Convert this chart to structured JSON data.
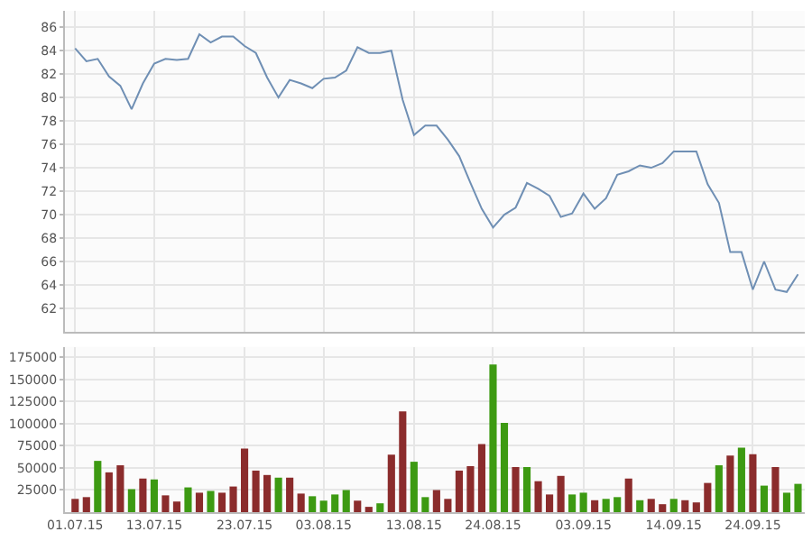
{
  "chart_data": [
    {
      "type": "line",
      "categories": [
        "01.07.15",
        null,
        null,
        null,
        null,
        null,
        null,
        "13.07.15",
        null,
        null,
        null,
        null,
        null,
        null,
        null,
        "23.07.15",
        null,
        null,
        null,
        null,
        null,
        null,
        "03.08.15",
        null,
        null,
        null,
        null,
        null,
        null,
        null,
        "13.08.15",
        null,
        null,
        null,
        null,
        null,
        null,
        "24.08.15",
        null,
        null,
        null,
        null,
        null,
        null,
        null,
        "03.09.15",
        null,
        null,
        null,
        null,
        null,
        null,
        null,
        "14.09.15",
        null,
        null,
        null,
        null,
        null,
        null,
        "24.09.15",
        null,
        null,
        null,
        null
      ],
      "series": [
        {
          "color": "#6f8fb4",
          "values": [
            84.2,
            83.1,
            83.3,
            81.8,
            81.0,
            79.0,
            81.2,
            82.9,
            83.3,
            83.2,
            83.3,
            85.4,
            84.7,
            85.2,
            85.2,
            84.4,
            83.8,
            81.7,
            80.0,
            81.5,
            81.2,
            80.8,
            81.6,
            81.7,
            82.3,
            84.3,
            83.8,
            83.8,
            84.0,
            79.8,
            76.8,
            77.6,
            77.6,
            76.4,
            75.0,
            72.7,
            70.5,
            68.9,
            70.0,
            70.6,
            72.7,
            72.2,
            71.6,
            69.8,
            70.1,
            71.8,
            70.5,
            71.4,
            73.4,
            73.7,
            74.2,
            74.0,
            74.4,
            75.4,
            75.4,
            75.4,
            72.6,
            71.0,
            66.8,
            66.8,
            63.6,
            66.0,
            63.6,
            63.4,
            64.9
          ]
        }
      ],
      "ylim": [
        60,
        87.4
      ],
      "yticks": [
        62,
        64,
        66,
        68,
        70,
        72,
        74,
        76,
        78,
        80,
        82,
        84,
        86
      ],
      "grid": true,
      "tick_labels": "y",
      "marker": "none",
      "line_style": "solid"
    },
    {
      "type": "bar",
      "categories": [
        "01.07.15",
        null,
        null,
        null,
        null,
        null,
        null,
        "13.07.15",
        null,
        null,
        null,
        null,
        null,
        null,
        null,
        "23.07.15",
        null,
        null,
        null,
        null,
        null,
        null,
        "03.08.15",
        null,
        null,
        null,
        null,
        null,
        null,
        null,
        "13.08.15",
        null,
        null,
        null,
        null,
        null,
        null,
        "24.08.15",
        null,
        null,
        null,
        null,
        null,
        null,
        null,
        "03.09.15",
        null,
        null,
        null,
        null,
        null,
        null,
        null,
        "14.09.15",
        null,
        null,
        null,
        null,
        null,
        null,
        "24.09.15",
        null,
        null,
        null,
        null
      ],
      "values": [
        15000,
        17000,
        58000,
        45000,
        53000,
        26000,
        38000,
        37000,
        19000,
        12000,
        28000,
        22000,
        24000,
        22000,
        29000,
        72000,
        47000,
        42000,
        39000,
        39000,
        21000,
        18000,
        13000,
        20000,
        25000,
        13000,
        6000,
        10000,
        65000,
        114000,
        57000,
        17000,
        25000,
        15000,
        47000,
        52000,
        77000,
        167000,
        101000,
        51000,
        51000,
        35000,
        20000,
        41000,
        20000,
        22000,
        13500,
        15000,
        17000,
        38000,
        13500,
        15000,
        9000,
        15000,
        13500,
        11000,
        33000,
        53000,
        64000,
        73000,
        65500,
        30000,
        51000,
        22000,
        32000
      ],
      "colors": [
        "#8b2c2c",
        "#8b2c2c",
        "#3d9a12",
        "#8b2c2c",
        "#8b2c2c",
        "#3d9a12",
        "#8b2c2c",
        "#3d9a12",
        "#8b2c2c",
        "#8b2c2c",
        "#3d9a12",
        "#8b2c2c",
        "#3d9a12",
        "#8b2c2c",
        "#8b2c2c",
        "#8b2c2c",
        "#8b2c2c",
        "#8b2c2c",
        "#3d9a12",
        "#8b2c2c",
        "#8b2c2c",
        "#3d9a12",
        "#3d9a12",
        "#3d9a12",
        "#3d9a12",
        "#8b2c2c",
        "#8b2c2c",
        "#3d9a12",
        "#8b2c2c",
        "#8b2c2c",
        "#3d9a12",
        "#3d9a12",
        "#8b2c2c",
        "#8b2c2c",
        "#8b2c2c",
        "#8b2c2c",
        "#8b2c2c",
        "#3d9a12",
        "#3d9a12",
        "#8b2c2c",
        "#3d9a12",
        "#8b2c2c",
        "#8b2c2c",
        "#8b2c2c",
        "#3d9a12",
        "#3d9a12",
        "#8b2c2c",
        "#3d9a12",
        "#3d9a12",
        "#8b2c2c",
        "#3d9a12",
        "#8b2c2c",
        "#8b2c2c",
        "#3d9a12",
        "#8b2c2c",
        "#8b2c2c",
        "#8b2c2c",
        "#3d9a12",
        "#8b2c2c",
        "#3d9a12",
        "#8b2c2c",
        "#3d9a12",
        "#8b2c2c",
        "#3d9a12",
        "#3d9a12"
      ],
      "ylim": [
        0,
        187000
      ],
      "yticks": [
        25000,
        50000,
        75000,
        100000,
        125000,
        150000,
        175000
      ],
      "grid": true
    }
  ]
}
